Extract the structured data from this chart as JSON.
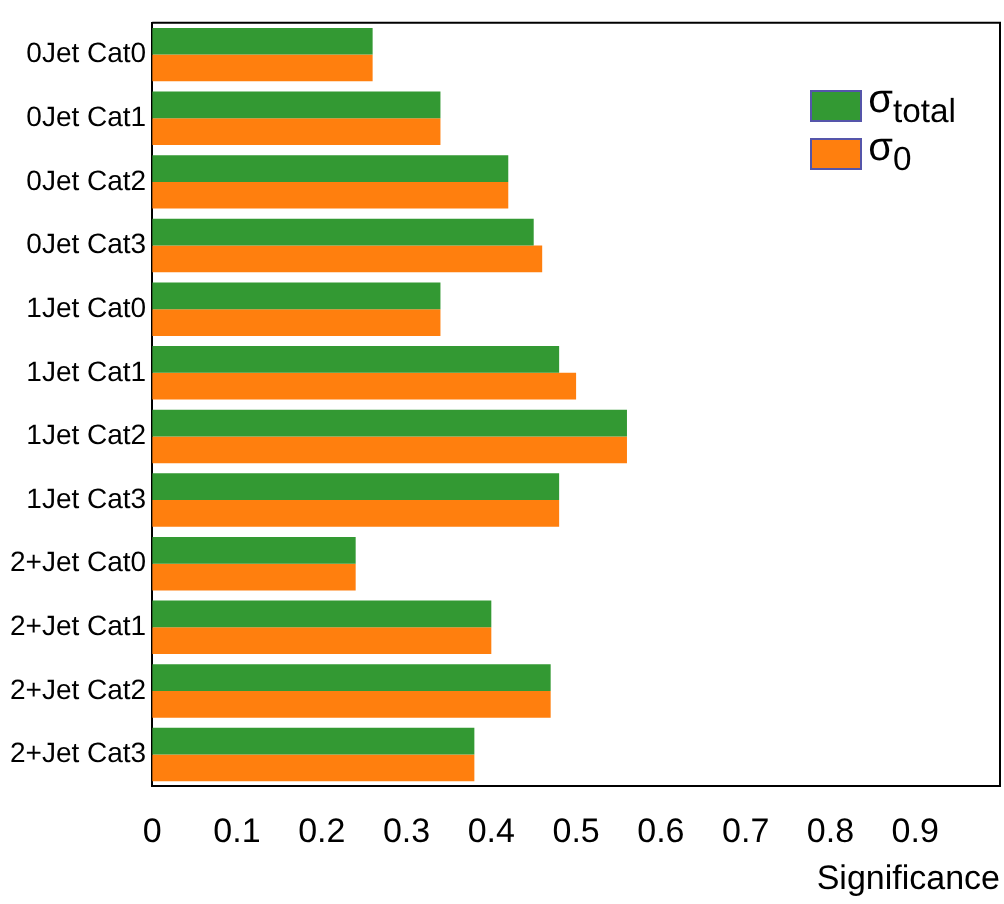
{
  "chart_data": {
    "type": "bar",
    "orientation": "horizontal",
    "xlabel": "Significance",
    "categories": [
      "0Jet Cat0",
      "0Jet Cat1",
      "0Jet Cat2",
      "0Jet Cat3",
      "1Jet Cat0",
      "1Jet Cat1",
      "1Jet Cat2",
      "1Jet Cat3",
      "2+Jet Cat0",
      "2+Jet Cat1",
      "2+Jet Cat2",
      "2+Jet Cat3"
    ],
    "series": [
      {
        "name": "σ$_{total}$",
        "color": "#339933",
        "values": [
          0.26,
          0.34,
          0.42,
          0.45,
          0.34,
          0.48,
          0.56,
          0.48,
          0.24,
          0.4,
          0.47,
          0.38
        ]
      },
      {
        "name": "σ$_{0}$",
        "color": "#ff7f0e",
        "values": [
          0.26,
          0.34,
          0.42,
          0.46,
          0.34,
          0.5,
          0.56,
          0.48,
          0.24,
          0.4,
          0.47,
          0.38
        ]
      }
    ],
    "xlim": [
      0,
      1
    ],
    "xticks": [
      0,
      0.1,
      0.2,
      0.3,
      0.4,
      0.5,
      0.6,
      0.7,
      0.8,
      0.9
    ],
    "grid": false,
    "legend": "top right"
  }
}
